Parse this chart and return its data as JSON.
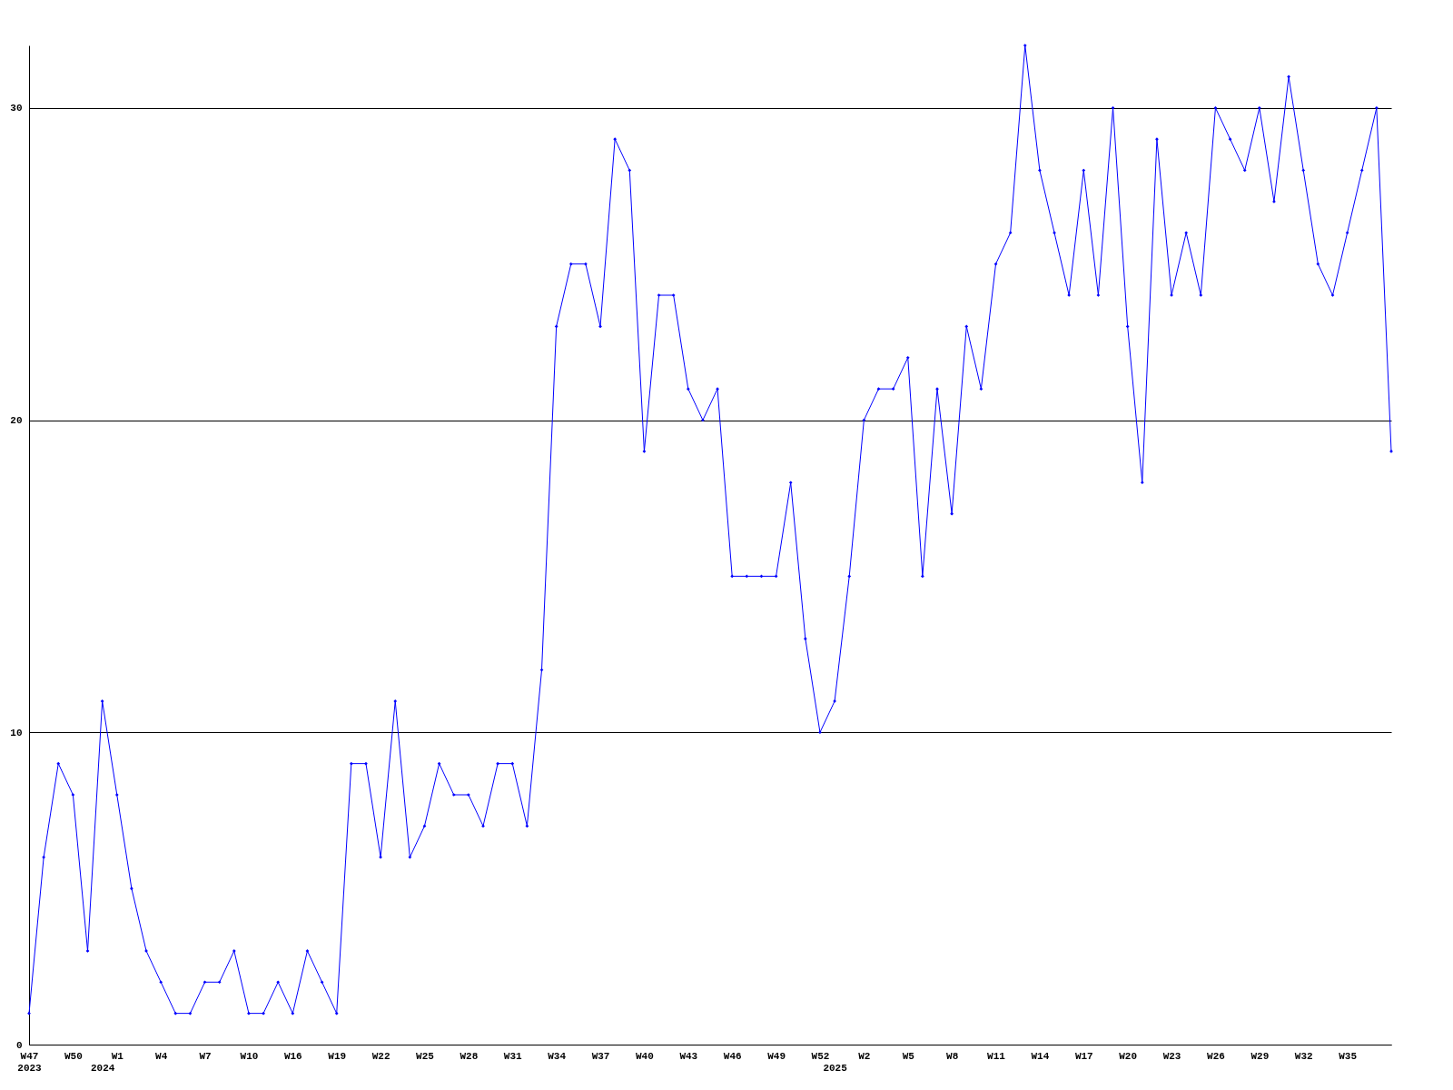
{
  "chart_data": {
    "type": "line",
    "categories": [
      "W47\n2023",
      null,
      null,
      "W50",
      null,
      "\n2024",
      "W1",
      null,
      null,
      "W4",
      null,
      null,
      "W7",
      null,
      null,
      "W10",
      null,
      null,
      "W16",
      null,
      null,
      "W19",
      null,
      null,
      "W22",
      null,
      null,
      "W25",
      null,
      null,
      "W28",
      null,
      null,
      "W31",
      null,
      null,
      "W34",
      null,
      null,
      "W37",
      null,
      null,
      "W40",
      null,
      null,
      "W43",
      null,
      null,
      "W46",
      null,
      null,
      "W49",
      null,
      null,
      "W52",
      "\n2025",
      null,
      "W2",
      null,
      null,
      "W5",
      null,
      null,
      "W8",
      null,
      null,
      "W11",
      null,
      null,
      "W14",
      null,
      null,
      "W17",
      null,
      null,
      "W20",
      null,
      null,
      "W23",
      null,
      null,
      "W26",
      null,
      null,
      "W29",
      null,
      null,
      "W32",
      null,
      null,
      "W35",
      null,
      null,
      null
    ],
    "series": [
      {
        "color": "#0000ff",
        "values": [
          1,
          6,
          9,
          8,
          3,
          11,
          8,
          5,
          3,
          2,
          1,
          1,
          2,
          2,
          3,
          1,
          1,
          2,
          1,
          3,
          2,
          1,
          9,
          9,
          6,
          11,
          6,
          7,
          9,
          8,
          8,
          7,
          9,
          9,
          7,
          12,
          23,
          25,
          25,
          23,
          29,
          28,
          19,
          24,
          24,
          21,
          20,
          21,
          15,
          15,
          15,
          15,
          18,
          13,
          10,
          11,
          15,
          20,
          21,
          21,
          22,
          15,
          21,
          17,
          23,
          21,
          25,
          26,
          32,
          28,
          26,
          24,
          28,
          24,
          30,
          23,
          18,
          29,
          24,
          26,
          24,
          30,
          29,
          28,
          30,
          27,
          31,
          28,
          25,
          24,
          26,
          28,
          30,
          19
        ]
      }
    ],
    "ylim": [
      0,
      32
    ],
    "yticks": [
      0,
      10,
      20,
      30
    ],
    "grid": "y",
    "marker": "diamond",
    "line_style": "solid"
  }
}
